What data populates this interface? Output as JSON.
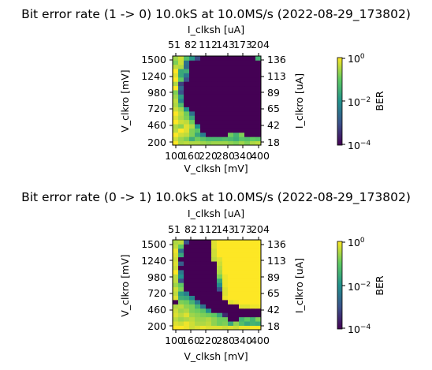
{
  "chart_data": [
    {
      "type": "heatmap",
      "title": "Bit error rate (1 -> 0) 10.0kS at 10.0MS/s (2022-08-29_173802)",
      "xlabel": "V_clksh [mV]",
      "ylabel": "V_clkro [mV]",
      "x2label": "I_clksh [uA]",
      "y2label": "I_clkro [uA]",
      "x_ticks": [
        "100",
        "160",
        "220",
        "280",
        "340",
        "400"
      ],
      "x2_ticks": [
        "51",
        "82",
        "112",
        "143",
        "173",
        "204"
      ],
      "y_ticks": [
        "1500",
        "1240",
        "980",
        "720",
        "460",
        "200"
      ],
      "y2_ticks": [
        "136",
        "113",
        "89",
        "65",
        "42",
        "18"
      ],
      "x": [
        100,
        120,
        140,
        160,
        180,
        200,
        220,
        240,
        260,
        280,
        300,
        320,
        340,
        360,
        380,
        400
      ],
      "y": [
        200,
        265,
        330,
        395,
        460,
        525,
        590,
        655,
        720,
        785,
        850,
        915,
        980,
        1045,
        1110,
        1175,
        1240,
        1305,
        1370,
        1435,
        1500
      ],
      "log10_ber": [
        [
          0,
          -0.5,
          -0.4,
          -0.5,
          -0.5,
          -0.6,
          -0.7,
          -0.6,
          -0.6,
          -0.6,
          -0.7,
          -0.8,
          -0.6,
          -0.8,
          -0.5,
          -0.4
        ],
        [
          -0.3,
          -0.6,
          -0.8,
          -1.5,
          -0.9,
          -1.1,
          -1.3,
          -1.3,
          -1.3,
          -1.2,
          -1.3,
          -1.5,
          -1.1,
          -1.2,
          -1.0,
          -1.1
        ],
        [
          0,
          -0.3,
          -0.4,
          -0.8,
          -1.6,
          -2.3,
          -4,
          -4,
          -4,
          -4,
          -0.9,
          -1.4,
          -0.8,
          -4,
          -4,
          -4
        ],
        [
          -0.4,
          0,
          -0.2,
          -0.8,
          -1.1,
          -4,
          -4,
          -4,
          -4,
          -4,
          -4,
          -4,
          -4,
          -4,
          -4,
          -4
        ],
        [
          -0.5,
          -0.7,
          -0.2,
          -0.5,
          -2.0,
          -4,
          -4,
          -4,
          -4,
          -4,
          -4,
          -4,
          -4,
          -4,
          -4,
          -4
        ],
        [
          0,
          -0.3,
          -0.4,
          -0.9,
          -4,
          -4,
          -4,
          -4,
          -4,
          -4,
          -4,
          -4,
          -4,
          -4,
          -4,
          -4
        ],
        [
          -0.2,
          -0.5,
          -0.8,
          -1.6,
          -4,
          -4,
          -4,
          -4,
          -4,
          -4,
          -4,
          -4,
          -4,
          -4,
          -4,
          -4
        ],
        [
          0,
          -0.4,
          -0.9,
          -2.5,
          -4,
          -4,
          -4,
          -4,
          -4,
          -4,
          -4,
          -4,
          -4,
          -4,
          -4,
          -4
        ],
        [
          -0.3,
          -0.6,
          -2.0,
          -4,
          -4,
          -4,
          -4,
          -4,
          -4,
          -4,
          -4,
          -4,
          -4,
          -4,
          -4,
          -4
        ],
        [
          -0.5,
          -1.2,
          -4,
          -4,
          -4,
          -4,
          -4,
          -4,
          -4,
          -4,
          -4,
          -4,
          -4,
          -4,
          -4,
          -4
        ],
        [
          -0.4,
          -2.2,
          -4,
          -4,
          -4,
          -4,
          -4,
          -4,
          -4,
          -4,
          -4,
          -4,
          -4,
          -4,
          -4,
          -4
        ],
        [
          -0.6,
          -1.8,
          -4,
          -4,
          -4,
          -4,
          -4,
          -4,
          -4,
          -4,
          -4,
          -4,
          -4,
          -4,
          -4,
          -4
        ],
        [
          -0.8,
          -3.0,
          -4,
          -4,
          -4,
          -4,
          -4,
          -4,
          -4,
          -4,
          -4,
          -4,
          -4,
          -4,
          -4,
          -4
        ],
        [
          0,
          -2.6,
          -4,
          -4,
          -4,
          -4,
          -4,
          -4,
          -4,
          -4,
          -4,
          -4,
          -4,
          -4,
          -4,
          -4
        ],
        [
          -0.5,
          -3.2,
          -4,
          -4,
          -4,
          -4,
          -4,
          -4,
          -4,
          -4,
          -4,
          -4,
          -4,
          -4,
          -4,
          -4
        ],
        [
          0,
          -1.0,
          -3.0,
          -4,
          -4,
          -4,
          -4,
          -4,
          -4,
          -4,
          -4,
          -4,
          -4,
          -4,
          -4,
          -4
        ],
        [
          -0.2,
          -1.6,
          -2.4,
          -4,
          -4,
          -4,
          -4,
          -4,
          -4,
          -4,
          -4,
          -4,
          -4,
          -4,
          -4,
          -4
        ],
        [
          0,
          -1.6,
          -1.5,
          -4,
          -4,
          -4,
          -4,
          -4,
          -4,
          -4,
          -4,
          -4,
          -4,
          -4,
          -4,
          -4
        ],
        [
          -0.4,
          -0.5,
          -2.6,
          -4,
          -4,
          -4,
          -4,
          -4,
          -4,
          -4,
          -4,
          -4,
          -4,
          -4,
          -4,
          -4
        ],
        [
          -0.8,
          -0.3,
          -2.5,
          -4,
          -4,
          -4,
          -4,
          -4,
          -4,
          -4,
          -4,
          -4,
          -4,
          -4,
          -4,
          -4
        ],
        [
          -0.6,
          -0.3,
          -1.2,
          -1.9,
          -3.1,
          -4,
          -4,
          -4,
          -4,
          -4,
          -4,
          -4,
          -4,
          -4,
          -4,
          -1.4
        ]
      ],
      "colorbar": {
        "label": "BER",
        "scale": "log",
        "range": [
          0.0001,
          1
        ],
        "ticks": [
          "10^0",
          "10^-2",
          "10^-4"
        ]
      },
      "colormap": [
        "#440154",
        "#3b528b",
        "#21918c",
        "#5ec962",
        "#fde725"
      ],
      "grid": false
    },
    {
      "type": "heatmap",
      "title": "Bit error rate (0 -> 1) 10.0kS at 10.0MS/s (2022-08-29_173802)",
      "xlabel": "V_clksh [mV]",
      "ylabel": "V_clkro [mV]",
      "x2label": "I_clksh [uA]",
      "y2label": "I_clkro [uA]",
      "x_ticks": [
        "100",
        "160",
        "220",
        "280",
        "340",
        "400"
      ],
      "x2_ticks": [
        "51",
        "82",
        "112",
        "143",
        "173",
        "204"
      ],
      "y_ticks": [
        "1500",
        "1240",
        "980",
        "720",
        "460",
        "200"
      ],
      "y2_ticks": [
        "136",
        "113",
        "89",
        "65",
        "42",
        "18"
      ],
      "x": [
        100,
        120,
        140,
        160,
        180,
        200,
        220,
        240,
        260,
        280,
        300,
        320,
        340,
        360,
        380,
        400
      ],
      "y": [
        200,
        265,
        330,
        395,
        460,
        525,
        590,
        655,
        720,
        785,
        850,
        915,
        980,
        1045,
        1110,
        1175,
        1240,
        1305,
        1370,
        1435,
        1500
      ],
      "log10_ber": [
        [
          0,
          0,
          -0.1,
          -0.3,
          -0.2,
          -0.1,
          -0.2,
          -0.2,
          -0.2,
          -0.3,
          -0.2,
          -0.3,
          -0.1,
          -0.1,
          0,
          0
        ],
        [
          -0.2,
          -0.3,
          -0.1,
          -0.3,
          -0.5,
          -0.5,
          -0.4,
          -0.7,
          -0.9,
          -0.8,
          -1.6,
          -0.7,
          -1.2,
          -1.6,
          -1.4,
          -1.5
        ],
        [
          -0.4,
          -0.6,
          -0.5,
          -0.4,
          -0.6,
          -0.6,
          -0.5,
          -0.7,
          -0.9,
          -0.9,
          -4,
          -4,
          -1.4,
          -1.0,
          -1.4,
          -0.8
        ],
        [
          -0.2,
          -0.4,
          -0.2,
          -0.6,
          -0.7,
          -0.8,
          -0.9,
          -1.0,
          -1.6,
          -3.5,
          -4,
          -4,
          -4,
          -4,
          -4,
          -4
        ],
        [
          -0.3,
          -0.6,
          -0.5,
          -0.8,
          -0.9,
          -1.1,
          -2.0,
          -4,
          -4,
          -4,
          -4,
          -4,
          -4,
          -4,
          -4,
          -4
        ],
        [
          -0.5,
          -0.4,
          -0.7,
          -0.8,
          -1.4,
          -2.5,
          -4,
          -4,
          -4,
          -4,
          -4,
          -4,
          -0.2,
          -0.2,
          -0.1,
          -0.1
        ],
        [
          -4,
          -0.8,
          -0.9,
          -1.4,
          -2.4,
          -4,
          -4,
          -4,
          -4,
          -4,
          -0.2,
          -0.1,
          0,
          0,
          0,
          0
        ],
        [
          -0.2,
          -1.5,
          -1.6,
          -2.2,
          -4,
          -4,
          -4,
          -4,
          -4,
          -0.1,
          0,
          0,
          0,
          0,
          0,
          0
        ],
        [
          -0.4,
          -1.8,
          -2.3,
          -4,
          -4,
          -4,
          -4,
          -4,
          -4,
          -0.2,
          0,
          0,
          0,
          0,
          0,
          0
        ],
        [
          -0.3,
          -0.8,
          -4,
          -4,
          -4,
          -4,
          -4,
          -4,
          -3.0,
          -0.2,
          0,
          0,
          0,
          0,
          0,
          0
        ],
        [
          -0.6,
          -1.0,
          -4,
          -4,
          -4,
          -4,
          -4,
          -4,
          -2.1,
          -0.1,
          0,
          0,
          0,
          0,
          0,
          0
        ],
        [
          -0.4,
          -3.0,
          -4,
          -4,
          -4,
          -4,
          -4,
          -4,
          -1.6,
          -0.1,
          0,
          0,
          0,
          0,
          0,
          0
        ],
        [
          -0.4,
          -2.0,
          -4,
          -4,
          -4,
          -4,
          -4,
          -4,
          -0.8,
          -0.1,
          0,
          0,
          0,
          0,
          0,
          0
        ],
        [
          0,
          -2.4,
          -4,
          -4,
          -4,
          -4,
          -4,
          -4,
          -0.5,
          0,
          0,
          0,
          0,
          0,
          0,
          0
        ],
        [
          -0.3,
          -4,
          -4,
          -4,
          -4,
          -4,
          -4,
          -4,
          -0.4,
          0,
          0,
          0,
          0,
          0,
          0,
          0
        ],
        [
          -0.2,
          -2.8,
          -4,
          -4,
          -4,
          -4,
          -4,
          -4,
          -0.3,
          0,
          0,
          0,
          0,
          0,
          0,
          0
        ],
        [
          -0.3,
          -4,
          -4,
          -4,
          -4,
          -4,
          -4,
          -0.4,
          -0.2,
          0,
          0,
          0,
          0,
          0,
          0,
          0
        ],
        [
          -0.2,
          -1.6,
          -4,
          -4,
          -4,
          -4,
          -4,
          -0.3,
          0,
          0,
          0,
          0,
          0,
          0,
          0,
          0
        ],
        [
          -0.1,
          -2.5,
          -4,
          -4,
          -4,
          -4,
          -4,
          -0.3,
          0,
          0,
          0,
          0,
          0,
          0,
          0,
          0
        ],
        [
          -0.4,
          -1.0,
          -4,
          -4,
          -4,
          -4,
          -4,
          -0.2,
          0,
          0,
          0,
          0,
          0,
          0,
          0,
          0
        ],
        [
          -0.5,
          -0.4,
          -3.0,
          -4,
          -4,
          -4,
          -4,
          -0.2,
          0,
          0,
          0,
          0,
          0,
          0,
          0,
          0
        ]
      ],
      "colorbar": {
        "label": "BER",
        "scale": "log",
        "range": [
          0.0001,
          1
        ],
        "ticks": [
          "10^0",
          "10^-2",
          "10^-4"
        ]
      },
      "colormap": [
        "#440154",
        "#3b528b",
        "#21918c",
        "#5ec962",
        "#fde725"
      ],
      "grid": false
    }
  ]
}
